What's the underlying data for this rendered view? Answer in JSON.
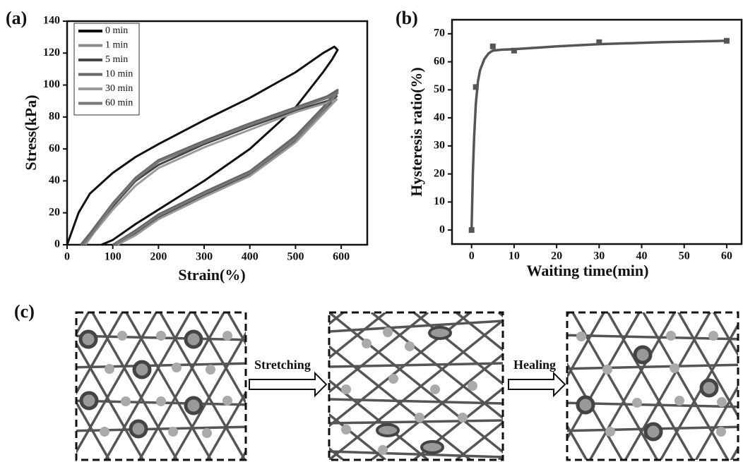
{
  "chart_data": [
    {
      "type": "line",
      "label": "(a)",
      "xlabel": "Strain(%)",
      "ylabel": "Stress(kPa)",
      "xlim": [
        0,
        657
      ],
      "ylim": [
        0,
        140
      ],
      "xticks": [
        0,
        100,
        200,
        300,
        400,
        500,
        600
      ],
      "yticks": [
        0,
        20,
        40,
        60,
        80,
        100,
        120,
        140
      ],
      "legend": "top-left",
      "series": [
        {
          "name": "0  min",
          "color": "#111111",
          "x": [
            0,
            25,
            50,
            100,
            150,
            200,
            300,
            400,
            500,
            560,
            585,
            592,
            580,
            560,
            500,
            400,
            300,
            200,
            150,
            100,
            75
          ],
          "values": [
            0,
            20,
            32,
            45,
            55,
            63,
            78,
            92,
            108,
            120,
            124,
            122,
            116,
            108,
            86,
            60,
            40,
            22,
            13,
            3,
            0
          ]
        },
        {
          "name": "1  min",
          "color": "#8a8a8a",
          "x": [
            30,
            50,
            100,
            150,
            200,
            300,
            400,
            500,
            570,
            592,
            580,
            560,
            500,
            400,
            300,
            200,
            150,
            100
          ],
          "values": [
            0,
            6,
            25,
            40,
            52,
            64,
            75,
            85,
            92,
            96,
            92,
            85,
            67,
            45,
            32,
            18,
            8,
            0
          ]
        },
        {
          "name": "5  min",
          "color": "#444444",
          "x": [
            35,
            50,
            100,
            150,
            200,
            300,
            400,
            500,
            570,
            590,
            580,
            560,
            500,
            400,
            300,
            200,
            150,
            105
          ],
          "values": [
            0,
            5,
            24,
            40,
            50,
            63,
            74,
            84,
            90,
            93,
            90,
            83,
            65,
            44,
            31,
            17,
            7,
            0
          ]
        },
        {
          "name": "10 min",
          "color": "#666666",
          "x": [
            30,
            50,
            100,
            150,
            200,
            300,
            400,
            500,
            570,
            592,
            580,
            560,
            500,
            400,
            300,
            200,
            150,
            100
          ],
          "values": [
            0,
            7,
            26,
            42,
            53,
            65,
            76,
            86,
            93,
            97,
            93,
            86,
            68,
            46,
            33,
            19,
            9,
            0
          ]
        },
        {
          "name": "30 min",
          "color": "#9a9a9a",
          "x": [
            40,
            60,
            100,
            150,
            200,
            300,
            400,
            500,
            570,
            590,
            580,
            560,
            500,
            400,
            300,
            200,
            150,
            110
          ],
          "values": [
            0,
            8,
            22,
            37,
            48,
            61,
            72,
            83,
            89,
            91,
            88,
            82,
            64,
            43,
            30,
            16,
            6,
            0
          ]
        },
        {
          "name": "60 min",
          "color": "#777777",
          "x": [
            35,
            55,
            100,
            150,
            200,
            300,
            400,
            500,
            570,
            592,
            580,
            560,
            500,
            400,
            300,
            200,
            150,
            105
          ],
          "values": [
            0,
            7,
            25,
            41,
            52,
            64,
            75,
            85,
            92,
            95,
            91,
            84,
            66,
            45,
            32,
            18,
            8,
            0
          ]
        }
      ]
    },
    {
      "type": "scatter",
      "label": "(b)",
      "xlabel": "Waiting time(min)",
      "ylabel": "Hysteresis ratio(%)",
      "xlim": [
        -4.6,
        63.5
      ],
      "ylim": [
        -5,
        75
      ],
      "xticks": [
        0,
        10,
        20,
        30,
        40,
        50,
        60
      ],
      "yticks": [
        0,
        10,
        20,
        30,
        40,
        50,
        60,
        70
      ],
      "points": {
        "color": "#555555",
        "x": [
          0,
          1,
          5,
          10,
          30,
          60
        ],
        "values": [
          0,
          51,
          65.5,
          64,
          67,
          67.5
        ]
      },
      "fit": {
        "color": "#555555",
        "x": [
          0,
          0.3,
          0.6,
          1,
          1.5,
          2,
          3,
          4,
          5,
          7,
          10,
          20,
          30,
          45,
          60
        ],
        "values": [
          0,
          20,
          33,
          45,
          53,
          57,
          61,
          63,
          64,
          64.3,
          64.5,
          65.5,
          66.3,
          67,
          67.5
        ]
      }
    }
  ],
  "diagram": {
    "label": "(c)",
    "arrows": [
      "Stretching",
      "Healing"
    ]
  }
}
